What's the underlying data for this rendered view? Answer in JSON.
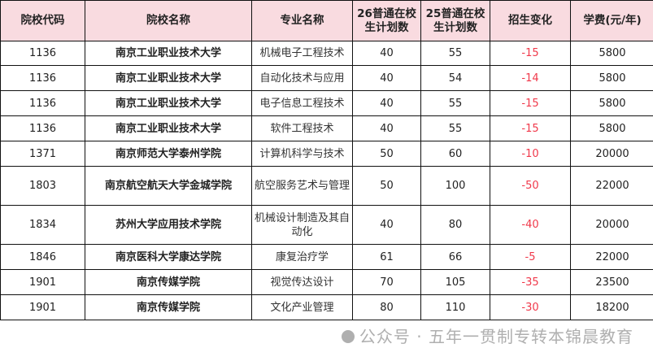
{
  "headers": [
    "院校代码",
    "院校名称",
    "专业名称",
    "26普通在校生计划数",
    "25普通在校生计划数",
    "招生变化",
    "学费(元/年)"
  ],
  "rows": [
    [
      "1136",
      "南京工业职业技术大学",
      "机械电子工程技术",
      "40",
      "55",
      "-15",
      "5800"
    ],
    [
      "1136",
      "南京工业职业技术大学",
      "自动化技术与应用",
      "40",
      "54",
      "-14",
      "5800"
    ],
    [
      "1136",
      "南京工业职业技术大学",
      "电子信息工程技术",
      "40",
      "55",
      "-15",
      "5800"
    ],
    [
      "1136",
      "南京工业职业技术大学",
      "软件工程技术",
      "40",
      "55",
      "-15",
      "5800"
    ],
    [
      "1371",
      "南京师范大学泰州学院",
      "计算机科学与技术",
      "50",
      "60",
      "-10",
      "20000"
    ],
    [
      "1803",
      "南京航空航天大学金城学院",
      "航空服务艺术与管理",
      "50",
      "100",
      "-50",
      "22000"
    ],
    [
      "1834",
      "苏州大学应用技术学院",
      "机械设计制造及其自动化",
      "40",
      "80",
      "-40",
      "20000"
    ],
    [
      "1846",
      "南京医科大学康达学院",
      "康复治疗学",
      "61",
      "66",
      "-5",
      "22000"
    ],
    [
      "1901",
      "南京传媒学院",
      "视觉传达设计",
      "70",
      "105",
      "-35",
      "23500"
    ],
    [
      "1901",
      "南京传媒学院",
      "文化产业管理",
      "80",
      "110",
      "-30",
      "18200"
    ]
  ],
  "colors": {
    "header_bg": "#f9dbe0",
    "change_text": "#f0384a"
  },
  "watermark": "公众号 · 五年一贯制专转本锦晨教育"
}
